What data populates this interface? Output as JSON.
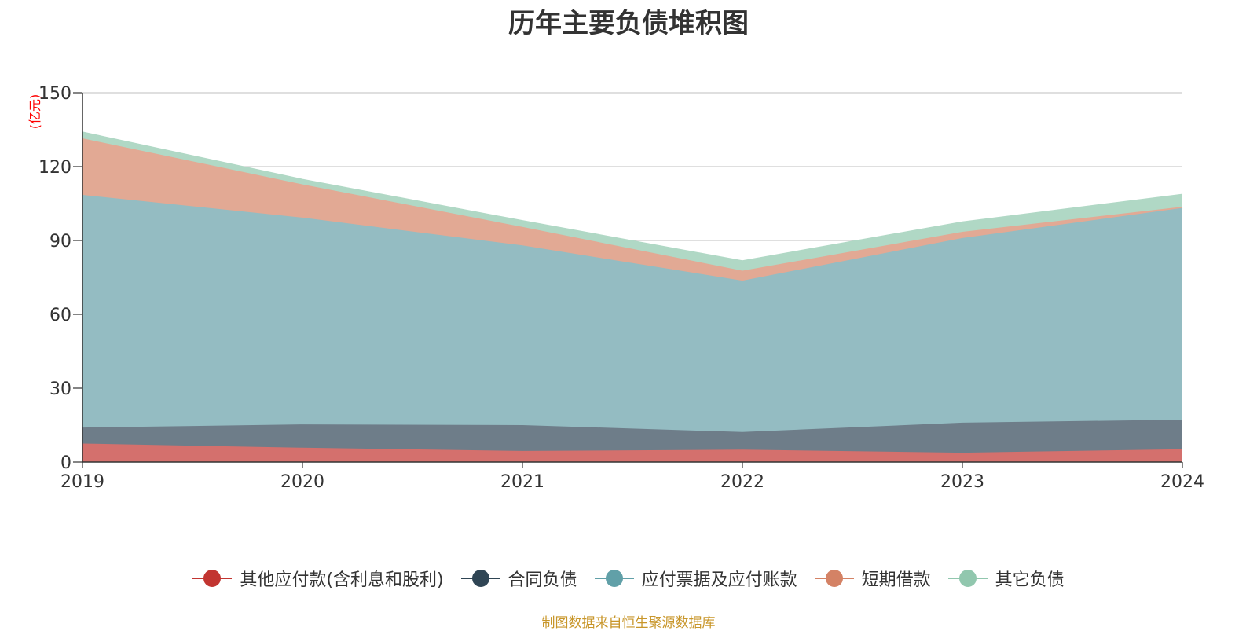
{
  "chart_data": {
    "type": "area",
    "stacked": true,
    "title": "历年主要负债堆积图",
    "ylabel": "(亿元)",
    "xlabel": "",
    "x": [
      "2019",
      "2020",
      "2021",
      "2022",
      "2023",
      "2024"
    ],
    "ylim": [
      0,
      150
    ],
    "yticks": [
      0,
      30,
      60,
      90,
      120,
      150
    ],
    "grid": true,
    "legend_position": "bottom",
    "series": [
      {
        "name": "其他应付款(含利息和股利)",
        "color": "#c23531",
        "fill": "#d4706d",
        "values": [
          7.5,
          5.8,
          4.5,
          5.0,
          3.8,
          5.2
        ]
      },
      {
        "name": "合同负债",
        "color": "#2f4554",
        "fill": "#6e7d89",
        "values": [
          6.5,
          9.5,
          10.5,
          7.2,
          12.2,
          12.0
        ]
      },
      {
        "name": "应付票据及应付账款",
        "color": "#61a0a8",
        "fill": "#94bcc2",
        "values": [
          94.5,
          84.0,
          73.0,
          61.5,
          75.0,
          86.0
        ]
      },
      {
        "name": "短期借款",
        "color": "#d48265",
        "fill": "#e2a994",
        "values": [
          23.0,
          13.5,
          7.5,
          4.0,
          2.5,
          0.5
        ]
      },
      {
        "name": "其它负债",
        "color": "#91c7ae",
        "fill": "#b0d8c5",
        "values": [
          2.5,
          2.0,
          2.5,
          4.0,
          4.0,
          5.0
        ]
      }
    ]
  },
  "source_note": "制图数据来自恒生聚源数据库"
}
